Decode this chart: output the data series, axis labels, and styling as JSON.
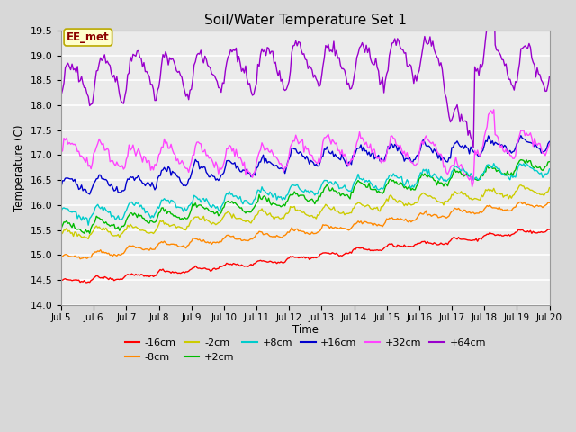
{
  "title": "Soil/Water Temperature Set 1",
  "xlabel": "Time",
  "ylabel": "Temperature (C)",
  "ylim": [
    14.0,
    19.5
  ],
  "xtick_labels": [
    "Jul 5",
    "Jul 6",
    "Jul 7",
    "Jul 8",
    "Jul 9",
    "Jul 10",
    "Jul 11",
    "Jul 12",
    "Jul 13",
    "Jul 14",
    "Jul 15",
    "Jul 16",
    "Jul 17",
    "Jul 18",
    "Jul 19",
    "Jul 20"
  ],
  "xtick_positions": [
    0,
    24,
    48,
    72,
    96,
    120,
    144,
    168,
    192,
    216,
    240,
    264,
    288,
    312,
    336,
    360
  ],
  "series": [
    {
      "label": "-16cm",
      "color": "#ff0000",
      "base": 14.45,
      "end": 15.5,
      "noise": 0.04,
      "diurnal": 0.04,
      "phase": 0.5,
      "drift": 0.006
    },
    {
      "label": "-8cm",
      "color": "#ff8800",
      "base": 14.92,
      "end": 16.02,
      "noise": 0.05,
      "diurnal": 0.06,
      "phase": 0.4,
      "drift": 0.007
    },
    {
      "label": "-2cm",
      "color": "#cccc00",
      "base": 15.38,
      "end": 16.28,
      "noise": 0.07,
      "diurnal": 0.09,
      "phase": 0.3,
      "drift": 0.007
    },
    {
      "label": "+2cm",
      "color": "#00bb00",
      "base": 15.52,
      "end": 16.62,
      "noise": 0.09,
      "diurnal": 0.11,
      "phase": 0.2,
      "drift": 0.008
    },
    {
      "label": "+8cm",
      "color": "#00cccc",
      "base": 15.82,
      "end": 16.88,
      "noise": 0.1,
      "diurnal": 0.12,
      "phase": 0.1,
      "drift": 0.008
    },
    {
      "label": "+16cm",
      "color": "#0000cc",
      "base": 16.38,
      "end": 17.48,
      "noise": 0.12,
      "diurnal": 0.15,
      "phase": 0.0,
      "drift": 0.009
    },
    {
      "label": "+32cm",
      "color": "#ff44ff",
      "base": 17.08,
      "end": 17.72,
      "noise": 0.16,
      "diurnal": 0.22,
      "phase": -0.2,
      "drift": 0.005
    },
    {
      "label": "+64cm",
      "color": "#9900cc",
      "base": 18.48,
      "end": 18.48,
      "noise": 0.22,
      "diurnal": 0.38,
      "phase": -0.5,
      "drift": 0.002
    }
  ],
  "annotation_text": "EE_met",
  "annotation_color": "#8b0000",
  "annotation_bg": "#ffffcc",
  "annotation_border": "#bbaa00",
  "plot_bg": "#ebebeb",
  "fig_bg": "#d8d8d8",
  "grid_color": "#ffffff",
  "n_points": 361,
  "seed": 42
}
